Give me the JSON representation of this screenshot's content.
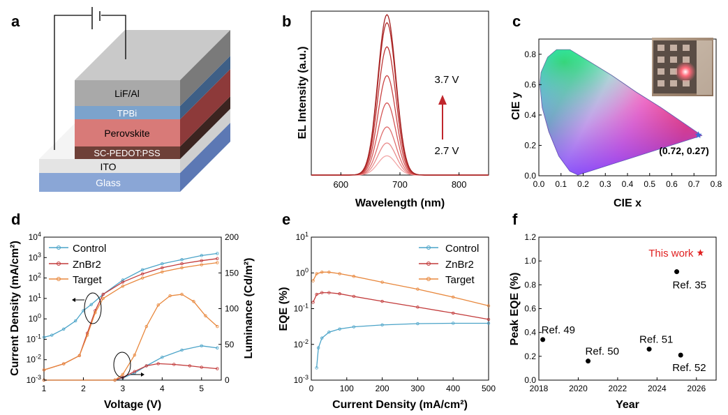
{
  "panel_letters": [
    "a",
    "b",
    "c",
    "d",
    "e",
    "f"
  ],
  "colors": {
    "control": "#4aa3c8",
    "znbr2": "#c23a3a",
    "target": "#e8873c",
    "red_star": "#e02020",
    "arrow": "#c0262c"
  },
  "device": {
    "layers": [
      "LiF/Al",
      "TPBi",
      "Perovskite",
      "SC-PEDOT:PSS",
      "ITO",
      "Glass"
    ]
  },
  "chart_data": [
    {
      "panel": "b",
      "type": "line",
      "title": "",
      "xlabel": "Wavelength (nm)",
      "ylabel": "EL Intensity (a.u.)",
      "xlim": [
        550,
        850
      ],
      "xticks": [
        "600",
        "700",
        "800"
      ],
      "peak_nm": 678,
      "fwhm_nm": 36,
      "series_peaks": [
        0.12,
        0.2,
        0.3,
        0.45,
        0.62,
        0.8,
        0.95,
        1.0
      ],
      "annotations": {
        "top": "3.7 V",
        "bottom": "2.7 V"
      }
    },
    {
      "panel": "c",
      "type": "scatter",
      "xlabel": "CIE x",
      "ylabel": "CIE y",
      "xlim": [
        0.0,
        0.8
      ],
      "ylim": [
        0.0,
        0.9
      ],
      "xticks": [
        "0.0",
        "0.1",
        "0.2",
        "0.3",
        "0.4",
        "0.5",
        "0.6",
        "0.7",
        "0.8"
      ],
      "yticks": [
        "0.0",
        "0.2",
        "0.4",
        "0.6",
        "0.8"
      ],
      "point": {
        "x": 0.72,
        "y": 0.27
      },
      "point_label": "(0.72, 0.27)"
    },
    {
      "panel": "d",
      "type": "line",
      "xlabel": "Voltage (V)",
      "ylabel": "Current Density (mA/cm²)",
      "y2label": "Luminance (Cd/m²)",
      "xlim": [
        1,
        5.5
      ],
      "ylim_log": [
        -3,
        4
      ],
      "y2lim": [
        0,
        200
      ],
      "xticks": [
        "1",
        "2",
        "3",
        "4",
        "5"
      ],
      "yticks": [
        "10-3",
        "10-2",
        "10-1",
        "100",
        "101",
        "102",
        "103",
        "104"
      ],
      "y2ticks": [
        "0",
        "50",
        "100",
        "150",
        "200"
      ],
      "legend": [
        "Control",
        "ZnBr2",
        "Target"
      ],
      "series": [
        {
          "name": "Control",
          "voltage": [
            1.0,
            1.2,
            1.5,
            1.8,
            2.0,
            2.2,
            2.5,
            3.0,
            3.5,
            4.0,
            4.5,
            5.0,
            5.4
          ],
          "log_current": [
            -0.9,
            -0.8,
            -0.5,
            -0.1,
            0.4,
            0.7,
            1.2,
            1.9,
            2.4,
            2.7,
            2.9,
            3.1,
            3.2
          ]
        },
        {
          "name": "ZnBr2",
          "voltage": [
            1.0,
            1.5,
            1.9,
            2.1,
            2.3,
            2.5,
            3.0,
            3.5,
            4.0,
            4.5,
            5.0,
            5.4
          ],
          "log_current": [
            -2.5,
            -2.2,
            -1.8,
            -0.7,
            0.4,
            1.2,
            1.8,
            2.2,
            2.5,
            2.7,
            2.85,
            2.95
          ]
        },
        {
          "name": "Target",
          "voltage": [
            1.0,
            1.5,
            1.9,
            2.1,
            2.3,
            2.5,
            3.0,
            3.5,
            4.0,
            4.5,
            5.0,
            5.4
          ],
          "log_current": [
            -2.5,
            -2.2,
            -1.8,
            -0.8,
            0.3,
            1.0,
            1.6,
            2.0,
            2.3,
            2.5,
            2.65,
            2.75
          ]
        }
      ],
      "luminance": [
        {
          "name": "Control",
          "voltage": [
            1.0,
            2.8,
            3.0,
            3.3,
            3.6,
            4.0,
            4.5,
            5.0,
            5.4
          ],
          "values": [
            0,
            0,
            3,
            10,
            20,
            32,
            42,
            48,
            45
          ]
        },
        {
          "name": "ZnBr2",
          "voltage": [
            1.0,
            2.8,
            3.0,
            3.3,
            3.6,
            3.9,
            4.3,
            4.7,
            5.0,
            5.4
          ],
          "values": [
            0,
            0,
            4,
            12,
            20,
            23,
            22,
            20,
            18,
            16
          ]
        },
        {
          "name": "Target",
          "voltage": [
            1.0,
            2.8,
            3.0,
            3.3,
            3.6,
            3.9,
            4.2,
            4.5,
            4.8,
            5.1,
            5.4
          ],
          "values": [
            0,
            0,
            8,
            35,
            75,
            105,
            118,
            120,
            110,
            90,
            75
          ]
        }
      ]
    },
    {
      "panel": "e",
      "type": "line",
      "xlabel": "Current Density (mA/cm²)",
      "ylabel": "EQE (%)",
      "xlim": [
        0,
        500
      ],
      "ylim_log": [
        -3,
        1
      ],
      "xticks": [
        "0",
        "100",
        "200",
        "300",
        "400",
        "500"
      ],
      "yticks": [
        "10-3",
        "10-2",
        "10-1",
        "100",
        "101"
      ],
      "legend": [
        "Control",
        "ZnBr2",
        "Target"
      ],
      "series": [
        {
          "name": "Control",
          "current": [
            15,
            20,
            30,
            50,
            80,
            120,
            200,
            300,
            400,
            500
          ],
          "eqe": [
            0.0022,
            0.008,
            0.015,
            0.022,
            0.027,
            0.031,
            0.035,
            0.038,
            0.039,
            0.039
          ]
        },
        {
          "name": "ZnBr2",
          "current": [
            5,
            15,
            30,
            50,
            80,
            120,
            200,
            300,
            400,
            500
          ],
          "eqe": [
            0.15,
            0.25,
            0.28,
            0.28,
            0.26,
            0.22,
            0.16,
            0.11,
            0.075,
            0.05
          ]
        },
        {
          "name": "Target",
          "current": [
            5,
            15,
            30,
            50,
            80,
            120,
            200,
            300,
            400,
            500
          ],
          "eqe": [
            0.6,
            0.95,
            1.05,
            1.05,
            0.95,
            0.8,
            0.55,
            0.35,
            0.21,
            0.12
          ]
        }
      ]
    },
    {
      "panel": "f",
      "type": "scatter",
      "xlabel": "Year",
      "ylabel": "Peak EQE (%)",
      "xlim": [
        2018,
        2027
      ],
      "ylim": [
        0.0,
        1.2
      ],
      "xticks": [
        "2018",
        "2020",
        "2022",
        "2024",
        "2026"
      ],
      "yticks": [
        "0.0",
        "0.2",
        "0.4",
        "0.6",
        "0.8",
        "1.0",
        "1.2"
      ],
      "points": [
        {
          "label": "Ref. 49",
          "year": 2018.2,
          "eqe": 0.34
        },
        {
          "label": "Ref. 50",
          "year": 2020.5,
          "eqe": 0.16
        },
        {
          "label": "Ref. 51",
          "year": 2023.6,
          "eqe": 0.26
        },
        {
          "label": "Ref. 52",
          "year": 2025.2,
          "eqe": 0.21
        },
        {
          "label": "Ref. 35",
          "year": 2025.0,
          "eqe": 0.91
        }
      ],
      "this_work": {
        "label": "This work",
        "year": 2026.2,
        "eqe": 1.07
      }
    }
  ]
}
